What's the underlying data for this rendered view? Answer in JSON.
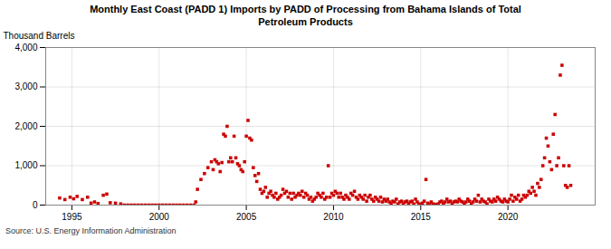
{
  "chart_data": {
    "type": "scatter",
    "title": "Monthly East Coast (PADD 1) Imports by PADD of Processing from Bahama Islands of Total\nPetroleum Products",
    "ylabel": "Thousand Barrels",
    "source": "Source: U.S. Energy Information Administration",
    "color": "#cc0000",
    "marker": "square",
    "grid": true,
    "xlim": [
      1993.5,
      2025.0
    ],
    "xticks": [
      1995,
      2000,
      2005,
      2010,
      2015,
      2020
    ],
    "ylim": [
      0,
      4000
    ],
    "yticks": [
      0,
      {
        "value": 1000,
        "label": "1,000"
      },
      {
        "value": 2000,
        "label": "2,000"
      },
      {
        "value": 3000,
        "label": "3,000"
      },
      {
        "value": 4000,
        "label": "4,000"
      }
    ],
    "x": [
      1994.3,
      1994.6,
      1994.9,
      1995.1,
      1995.3,
      1995.6,
      1995.9,
      1996.1,
      1996.3,
      1996.5,
      1996.8,
      1997.0,
      1997.2,
      1997.5,
      1997.8,
      1998.0,
      1998.2,
      1998.4,
      1998.6,
      1998.8,
      1999.0,
      1999.2,
      1999.4,
      1999.6,
      1999.8,
      2000.0,
      2000.2,
      2000.4,
      2000.6,
      2000.8,
      2001.0,
      2001.2,
      2001.4,
      2001.6,
      2001.8,
      2002.0,
      2002.1,
      2002.2,
      2002.4,
      2002.6,
      2002.8,
      2003.0,
      2003.1,
      2003.2,
      2003.3,
      2003.4,
      2003.5,
      2003.6,
      2003.7,
      2003.8,
      2003.9,
      2004.0,
      2004.1,
      2004.2,
      2004.3,
      2004.4,
      2004.5,
      2004.6,
      2004.7,
      2004.8,
      2004.9,
      2005.0,
      2005.1,
      2005.2,
      2005.3,
      2005.4,
      2005.5,
      2005.6,
      2005.7,
      2005.8,
      2005.9,
      2006.0,
      2006.1,
      2006.2,
      2006.3,
      2006.4,
      2006.5,
      2006.6,
      2006.7,
      2006.8,
      2006.9,
      2007.0,
      2007.1,
      2007.2,
      2007.3,
      2007.4,
      2007.5,
      2007.6,
      2007.7,
      2007.8,
      2007.9,
      2008.0,
      2008.1,
      2008.2,
      2008.3,
      2008.4,
      2008.5,
      2008.6,
      2008.7,
      2008.8,
      2008.9,
      2009.0,
      2009.1,
      2009.2,
      2009.3,
      2009.4,
      2009.5,
      2009.6,
      2009.7,
      2009.8,
      2009.9,
      2010.0,
      2010.1,
      2010.2,
      2010.3,
      2010.4,
      2010.5,
      2010.6,
      2010.7,
      2010.8,
      2010.9,
      2011.0,
      2011.1,
      2011.2,
      2011.3,
      2011.4,
      2011.5,
      2011.6,
      2011.7,
      2011.8,
      2011.9,
      2012.0,
      2012.1,
      2012.2,
      2012.3,
      2012.4,
      2012.5,
      2012.6,
      2012.7,
      2012.8,
      2012.9,
      2013.0,
      2013.1,
      2013.2,
      2013.3,
      2013.4,
      2013.5,
      2013.6,
      2013.7,
      2013.8,
      2013.9,
      2014.0,
      2014.1,
      2014.2,
      2014.3,
      2014.4,
      2014.5,
      2014.6,
      2014.7,
      2014.8,
      2014.9,
      2015.0,
      2015.1,
      2015.2,
      2015.3,
      2015.4,
      2015.5,
      2015.6,
      2015.7,
      2015.8,
      2015.9,
      2016.0,
      2016.1,
      2016.2,
      2016.3,
      2016.4,
      2016.5,
      2016.6,
      2016.7,
      2016.8,
      2016.9,
      2017.0,
      2017.1,
      2017.2,
      2017.3,
      2017.4,
      2017.5,
      2017.6,
      2017.7,
      2017.8,
      2017.9,
      2018.0,
      2018.1,
      2018.2,
      2018.3,
      2018.4,
      2018.5,
      2018.6,
      2018.7,
      2018.8,
      2018.9,
      2019.0,
      2019.1,
      2019.2,
      2019.3,
      2019.4,
      2019.5,
      2019.6,
      2019.7,
      2019.8,
      2019.9,
      2020.0,
      2020.1,
      2020.2,
      2020.3,
      2020.4,
      2020.5,
      2020.6,
      2020.7,
      2020.8,
      2020.9,
      2021.0,
      2021.1,
      2021.2,
      2021.3,
      2021.4,
      2021.5,
      2021.6,
      2021.7,
      2021.8,
      2021.9,
      2022.0,
      2022.1,
      2022.2,
      2022.3,
      2022.4,
      2022.5,
      2022.6,
      2022.7,
      2022.8,
      2022.9,
      2023.0,
      2023.1,
      2023.2,
      2023.3,
      2023.4,
      2023.5,
      2023.6
    ],
    "values": [
      180,
      140,
      200,
      160,
      220,
      140,
      200,
      50,
      80,
      40,
      250,
      280,
      60,
      50,
      30,
      0,
      0,
      0,
      0,
      0,
      0,
      0,
      0,
      0,
      0,
      0,
      0,
      0,
      0,
      0,
      0,
      0,
      0,
      0,
      0,
      0,
      80,
      400,
      650,
      800,
      950,
      1100,
      900,
      1150,
      1100,
      1050,
      850,
      1080,
      1800,
      1750,
      2000,
      1100,
      1200,
      1100,
      1750,
      1200,
      1050,
      1000,
      900,
      850,
      1100,
      1750,
      2150,
      1700,
      1650,
      950,
      750,
      600,
      800,
      400,
      300,
      350,
      450,
      200,
      300,
      350,
      250,
      200,
      300,
      150,
      200,
      250,
      400,
      300,
      350,
      200,
      300,
      150,
      300,
      200,
      250,
      300,
      250,
      350,
      200,
      300,
      250,
      150,
      200,
      100,
      150,
      200,
      300,
      250,
      200,
      300,
      150,
      200,
      1000,
      200,
      300,
      250,
      350,
      300,
      200,
      300,
      200,
      150,
      250,
      200,
      150,
      300,
      250,
      350,
      200,
      150,
      250,
      200,
      150,
      250,
      100,
      200,
      250,
      150,
      100,
      200,
      150,
      100,
      200,
      80,
      150,
      100,
      150,
      80,
      30,
      100,
      80,
      150,
      30,
      80,
      100,
      30,
      80,
      100,
      30,
      80,
      100,
      30,
      150,
      80,
      30,
      20,
      50,
      100,
      650,
      50,
      20,
      80,
      30,
      20,
      10,
      30,
      80,
      100,
      30,
      80,
      150,
      80,
      100,
      30,
      80,
      100,
      80,
      150,
      100,
      80,
      30,
      80,
      150,
      100,
      30,
      80,
      150,
      100,
      250,
      80,
      150,
      100,
      80,
      30,
      150,
      100,
      80,
      150,
      100,
      200,
      150,
      100,
      80,
      150,
      100,
      80,
      150,
      250,
      100,
      200,
      150,
      250,
      100,
      150,
      250,
      200,
      250,
      350,
      300,
      450,
      350,
      250,
      550,
      450,
      650,
      1000,
      1200,
      1700,
      1500,
      1100,
      900,
      1800,
      2300,
      1000,
      1200,
      3300,
      3550,
      1000,
      500,
      450,
      1000,
      500
    ]
  }
}
